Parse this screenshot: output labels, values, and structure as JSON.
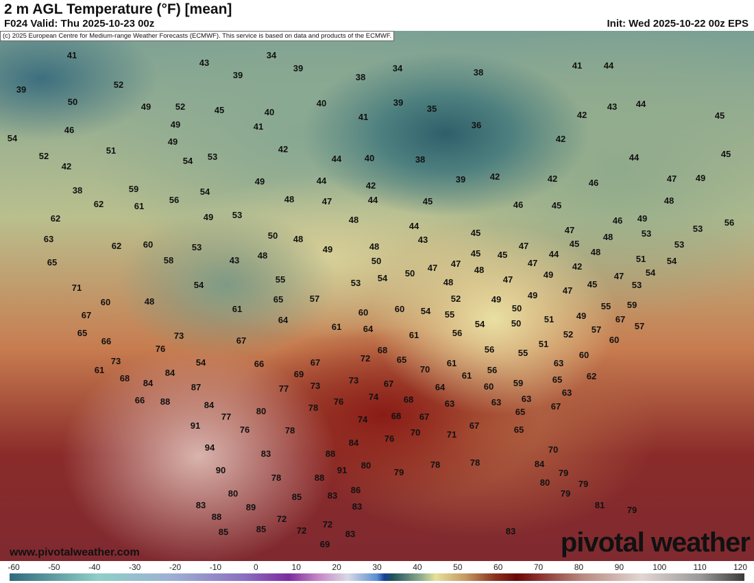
{
  "header": {
    "title": "2 m AGL Temperature (°F) [mean]",
    "valid": "F024 Valid: Thu 2025-10-23 00z",
    "init": "Init: Wed 2025-10-22 00z EPS"
  },
  "map": {
    "copyright": "(c) 2025 European Centre for Medium-range Weather Forecasts (ECMWF). This service is based on data and products of the ECMWF.",
    "website": "www.pivotalweather.com",
    "logo": "pivotal weather",
    "labels": [
      "41",
      "43",
      "34",
      "39",
      "34",
      "38",
      "41",
      "44",
      "39",
      "52",
      "39",
      "38",
      "50",
      "49",
      "52",
      "45",
      "40",
      "40",
      "39",
      "35",
      "43",
      "44",
      "42",
      "45",
      "46",
      "49",
      "41",
      "41",
      "36",
      "54",
      "49",
      "51",
      "42",
      "52",
      "54",
      "53",
      "44",
      "40",
      "38",
      "42",
      "44",
      "45",
      "42",
      "49",
      "44",
      "42",
      "39",
      "42",
      "42",
      "46",
      "47",
      "49",
      "38",
      "59",
      "54",
      "48",
      "47",
      "44",
      "45",
      "48",
      "62",
      "61",
      "56",
      "49",
      "53",
      "48",
      "46",
      "45",
      "46",
      "49",
      "53",
      "56",
      "62",
      "53",
      "47",
      "48",
      "53",
      "44",
      "43",
      "45",
      "63",
      "62",
      "60",
      "50",
      "48",
      "49",
      "48",
      "47",
      "45",
      "48",
      "65",
      "53",
      "58",
      "43",
      "48",
      "50",
      "47",
      "47",
      "45",
      "45",
      "44",
      "42",
      "47",
      "51",
      "54",
      "71",
      "55",
      "53",
      "54",
      "50",
      "48",
      "48",
      "49",
      "47",
      "54",
      "53",
      "54",
      "60",
      "48",
      "65",
      "57",
      "52",
      "47",
      "49",
      "49",
      "47",
      "45",
      "55",
      "59",
      "67",
      "61",
      "64",
      "60",
      "60",
      "54",
      "55",
      "50",
      "49",
      "57",
      "67",
      "65",
      "66",
      "73",
      "61",
      "64",
      "61",
      "54",
      "50",
      "51",
      "76",
      "67",
      "56",
      "52",
      "57",
      "60",
      "73",
      "54",
      "66",
      "72",
      "68",
      "65",
      "51",
      "56",
      "55",
      "63",
      "60",
      "67",
      "70",
      "61",
      "84",
      "61",
      "68",
      "69",
      "73",
      "67",
      "56",
      "61",
      "59",
      "65",
      "62",
      "84",
      "87",
      "77",
      "73",
      "74",
      "64",
      "60",
      "63",
      "66",
      "88",
      "84",
      "76",
      "68",
      "63",
      "63",
      "63",
      "67",
      "80",
      "78",
      "77",
      "74",
      "68",
      "67",
      "65",
      "91",
      "76",
      "78",
      "70",
      "71",
      "67",
      "65",
      "76",
      "84",
      "94",
      "83",
      "88",
      "70",
      "90",
      "80",
      "91",
      "79",
      "78",
      "78",
      "84",
      "79",
      "78",
      "88",
      "80",
      "79",
      "80",
      "85",
      "83",
      "86",
      "79",
      "83",
      "89",
      "83",
      "81",
      "88",
      "72",
      "72",
      "79",
      "85",
      "85",
      "72",
      "83",
      "83",
      "69"
    ]
  },
  "colorbar": {
    "ticks": [
      "-60",
      "-50",
      "-40",
      "-30",
      "-20",
      "-10",
      "0",
      "10",
      "20",
      "30",
      "40",
      "50",
      "60",
      "70",
      "80",
      "90",
      "100",
      "110",
      "120"
    ],
    "range": [
      -60,
      120
    ],
    "colors": [
      "#2f6a7e",
      "#8fcfc6",
      "#9db0d4",
      "#7c2b9e",
      "#d9d9e6",
      "#163f9a",
      "#8eae8e",
      "#e6e09a",
      "#8a3220",
      "#6a0808",
      "#b98a80",
      "#e2d6d2",
      "#3a3a3a"
    ]
  }
}
